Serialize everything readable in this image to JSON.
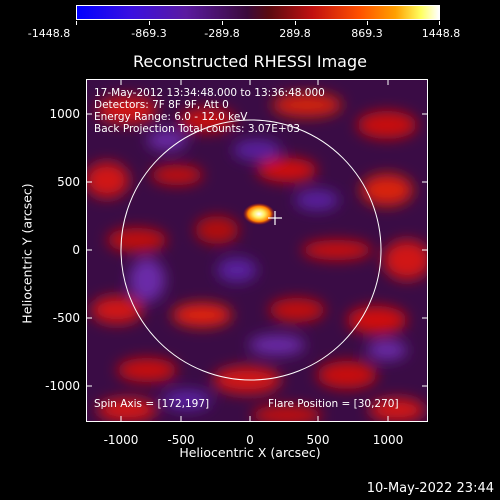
{
  "colorbar": {
    "ticks": [
      "-1448.8",
      "-869.3",
      "-289.8",
      "289.8",
      "869.3",
      "1448.8"
    ]
  },
  "title": "Reconstructed RHESSI Image",
  "info": {
    "line1": "17-May-2012 13:34:48.000 to 13:36:48.000",
    "line2": "Detectors: 7F 8F 9F, Att 0",
    "line3": "Energy Range: 6.0 - 12.0 keV",
    "line4": "Back Projection    Total counts: 3.07E+03"
  },
  "spin_axis": "Spin Axis = [172,197]",
  "flare_position": "Flare Position = [30,270]",
  "axes": {
    "xlabel": "Heliocentric X (arcsec)",
    "ylabel": "Heliocentric Y (arcsec)",
    "xticks": [
      "-1000",
      "-500",
      "0",
      "500",
      "1000"
    ],
    "yticks": [
      "1000",
      "500",
      "0",
      "-500",
      "-1000"
    ]
  },
  "footer_date": "10-May-2022 23:44"
}
